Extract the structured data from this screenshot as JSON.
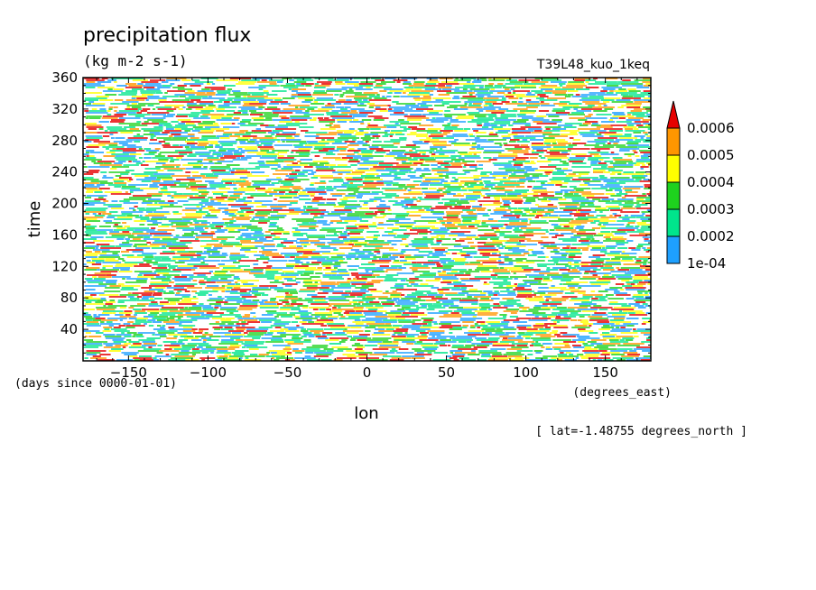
{
  "chart_data": {
    "type": "heatmap",
    "title": "precipitation flux",
    "units": "(kg m-2 s-1)",
    "experiment": "T39L48_kuo_1keq",
    "xlabel": "lon",
    "xunits": "(degrees_east)",
    "ylabel": "time",
    "yunits": "(days since 0000-01-01)",
    "footnote": "[ lat=-1.48755 degrees_north ]",
    "x_range": [
      -178.6,
      178.6
    ],
    "y_range": [
      0,
      360
    ],
    "x_ticks": [
      -150,
      -100,
      -50,
      0,
      50,
      100,
      150
    ],
    "x_tick_labels": [
      "−150",
      "−100",
      "−50",
      "0",
      "50",
      "100",
      "150"
    ],
    "y_ticks": [
      40,
      80,
      120,
      160,
      200,
      240,
      280,
      320,
      360
    ],
    "y_tick_labels": [
      "40",
      "80",
      "120",
      "160",
      "200",
      "240",
      "280",
      "320",
      "360"
    ],
    "colorbar": {
      "levels": [
        0.0001,
        0.0002,
        0.0003,
        0.0004,
        0.0005,
        0.0006
      ],
      "level_labels": [
        "1e-04",
        "0.0002",
        "0.0003",
        "0.0004",
        "0.0005",
        "0.0006"
      ],
      "colors": [
        "#1ea0ff",
        "#00e58c",
        "#1ed21e",
        "#ffff00",
        "#ff9600",
        "#e60000"
      ],
      "extend": "max"
    },
    "pattern_note": "Noisy eastward-propagating rain streaks across all longitudes and times; values mostly between 1e-04 and 0.0006, with white where below 1e-04."
  }
}
